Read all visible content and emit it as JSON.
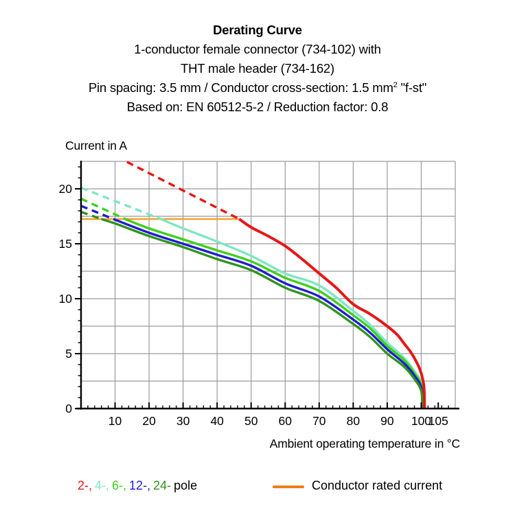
{
  "header": {
    "title": "Derating Curve",
    "subtitle1": "1-conductor female connector (734-102) with",
    "subtitle2": "THT male header (734-162)",
    "spec_line": {
      "pre": "Pin spacing: 3.5 mm / Conductor cross-section: 1.5 mm",
      "sup": "2",
      "post": " \"f-st\""
    },
    "based_line": "Based on: EN 60512-5-2 / Reduction factor: 0.8"
  },
  "chart_data": {
    "type": "line",
    "title": "Derating Curve",
    "ylabel": "Current in A",
    "xlabel": "Ambient operating temperature in °C",
    "xlim": [
      0,
      110
    ],
    "ylim": [
      0,
      22.5
    ],
    "x_ticks": [
      10,
      20,
      30,
      40,
      50,
      60,
      70,
      80,
      90,
      100,
      105
    ],
    "y_ticks": [
      0,
      5,
      10,
      15,
      20
    ],
    "x_minor_step": 2,
    "y_minor_step": 1,
    "x_grid_step": 10,
    "y_grid_step": 2.5,
    "grid_on": true,
    "grid_color": "#9a9a9a",
    "axis_color": "#000000",
    "rated_current_line": {
      "label": "Conductor rated current",
      "y": 17.25,
      "x_start": 0,
      "x_end": 46.5,
      "color": "#F5A02D"
    },
    "series": [
      {
        "name": "4-pole",
        "color": "#7FE6C3",
        "dashed": [
          [
            0,
            20.1
          ],
          [
            23.5,
            17.25
          ]
        ],
        "solid": [
          [
            23.5,
            17.25
          ],
          [
            30,
            16.4
          ],
          [
            40,
            15.2
          ],
          [
            50,
            13.9
          ],
          [
            60,
            12.3
          ],
          [
            70,
            11.2
          ],
          [
            80,
            8.9
          ],
          [
            85,
            7.6
          ],
          [
            90,
            6.0
          ],
          [
            95,
            4.6
          ],
          [
            98,
            3.4
          ],
          [
            100,
            2.3
          ],
          [
            100.6,
            0
          ]
        ]
      },
      {
        "name": "6-pole",
        "color": "#3FCF1E",
        "dashed": [
          [
            0,
            19.1
          ],
          [
            13,
            17.25
          ]
        ],
        "solid": [
          [
            13,
            17.25
          ],
          [
            20,
            16.4
          ],
          [
            30,
            15.4
          ],
          [
            40,
            14.4
          ],
          [
            50,
            13.4
          ],
          [
            60,
            11.9
          ],
          [
            70,
            10.7
          ],
          [
            80,
            8.5
          ],
          [
            85,
            7.3
          ],
          [
            90,
            5.7
          ],
          [
            95,
            4.4
          ],
          [
            98,
            3.2
          ],
          [
            100,
            2.1
          ],
          [
            100.5,
            0
          ]
        ]
      },
      {
        "name": "12-pole",
        "color": "#1E1ECD",
        "dashed": [
          [
            0,
            18.45
          ],
          [
            9.5,
            17.25
          ]
        ],
        "solid": [
          [
            9.5,
            17.25
          ],
          [
            20,
            16.0
          ],
          [
            30,
            15.0
          ],
          [
            40,
            14.0
          ],
          [
            50,
            13.0
          ],
          [
            60,
            11.4
          ],
          [
            70,
            10.2
          ],
          [
            80,
            8.1
          ],
          [
            85,
            6.9
          ],
          [
            90,
            5.4
          ],
          [
            95,
            4.1
          ],
          [
            98,
            3.0
          ],
          [
            100,
            1.9
          ],
          [
            100.4,
            0
          ]
        ]
      },
      {
        "name": "24-pole",
        "color": "#2F941C",
        "dashed": [
          [
            0,
            17.9
          ],
          [
            6,
            17.25
          ]
        ],
        "solid": [
          [
            6,
            17.25
          ],
          [
            10,
            16.85
          ],
          [
            20,
            15.7
          ],
          [
            30,
            14.7
          ],
          [
            40,
            13.6
          ],
          [
            50,
            12.6
          ],
          [
            60,
            11.0
          ],
          [
            70,
            9.8
          ],
          [
            80,
            7.7
          ],
          [
            85,
            6.5
          ],
          [
            90,
            5.0
          ],
          [
            95,
            3.8
          ],
          [
            98,
            2.7
          ],
          [
            100,
            1.6
          ],
          [
            100.3,
            0
          ]
        ]
      },
      {
        "name": "2-pole",
        "color": "#E81616",
        "dashed": [
          [
            13.5,
            22.45
          ],
          [
            46.5,
            17.25
          ]
        ],
        "solid": [
          [
            46.5,
            17.25
          ],
          [
            50,
            16.5
          ],
          [
            55,
            15.7
          ],
          [
            60,
            14.8
          ],
          [
            65,
            13.6
          ],
          [
            70,
            12.3
          ],
          [
            75,
            11.0
          ],
          [
            80,
            9.5
          ],
          [
            85,
            8.6
          ],
          [
            90,
            7.5
          ],
          [
            93,
            6.7
          ],
          [
            95,
            5.9
          ],
          [
            97,
            5.1
          ],
          [
            99,
            4.0
          ],
          [
            100,
            3.2
          ],
          [
            100.8,
            2.0
          ],
          [
            101,
            0
          ]
        ]
      }
    ]
  },
  "legend": {
    "pole_items": [
      {
        "label": "2-,",
        "color": "#E81616"
      },
      {
        "label": "4-,",
        "color": "#7FE6C3"
      },
      {
        "label": "6-,",
        "color": "#3FCF1E"
      },
      {
        "label": "12-,",
        "color": "#1E1ECD"
      },
      {
        "label": "24-",
        "color": "#2F941C"
      }
    ],
    "pole_suffix": "pole",
    "rated_label": "Conductor rated current",
    "swatch_color": "#EF7D1A"
  }
}
